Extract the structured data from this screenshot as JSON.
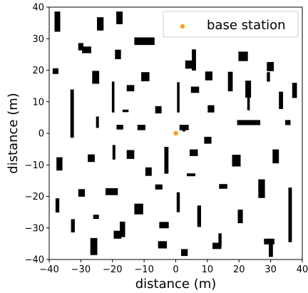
{
  "chart_data": {
    "type": "scatter",
    "xlabel": "distance (m)",
    "ylabel": "distance (m)",
    "xlim": [
      -40,
      40
    ],
    "ylim": [
      -40,
      40
    ],
    "xticks": [
      -40,
      -30,
      -20,
      -10,
      0,
      10,
      20,
      30,
      40
    ],
    "yticks": [
      -40,
      -30,
      -20,
      -10,
      0,
      10,
      20,
      30,
      40
    ],
    "grid": false,
    "legend_position": "top-right",
    "colors": {
      "obstacle": "#000000",
      "base_station": "#ff9f1c"
    },
    "series": [
      {
        "name": "base station",
        "points": [
          [
            0,
            0
          ]
        ]
      }
    ],
    "obstacles": [
      [
        -38.3,
        32.2,
        1.8,
        6.4
      ],
      [
        -30.8,
        26.3,
        1.6,
        2.3
      ],
      [
        -29.6,
        25.4,
        2.9,
        2.1
      ],
      [
        -24.9,
        32.6,
        2.1,
        4.2
      ],
      [
        -18.8,
        34.6,
        2.0,
        4.0
      ],
      [
        -13.1,
        28.0,
        6.4,
        2.4
      ],
      [
        -19.2,
        23.5,
        1.9,
        3.0
      ],
      [
        -38.9,
        18.8,
        1.8,
        1.8
      ],
      [
        -26.4,
        15.7,
        2.2,
        4.1
      ],
      [
        -10.9,
        16.5,
        2.6,
        2.9
      ],
      [
        -15.5,
        13.3,
        2.4,
        2.0
      ],
      [
        -20.2,
        6.6,
        0.8,
        9.8
      ],
      [
        -33.3,
        -1.4,
        1.1,
        15.3
      ],
      [
        -25.2,
        1.7,
        0.9,
        3.6
      ],
      [
        -16.8,
        6.7,
        1.9,
        0.8
      ],
      [
        -6.5,
        6.3,
        2.0,
        2.3
      ],
      [
        -18.7,
        1.2,
        2.1,
        1.5
      ],
      [
        -12.1,
        1.0,
        2.5,
        1.7
      ],
      [
        0.4,
        6.6,
        0.8,
        9.6
      ],
      [
        3.0,
        20.5,
        3.4,
        2.6
      ],
      [
        5.1,
        19.9,
        1.3,
        6.7
      ],
      [
        4.8,
        12.8,
        2.6,
        2.0
      ],
      [
        9.3,
        16.8,
        2.3,
        2.8
      ],
      [
        10.1,
        6.6,
        2.1,
        2.3
      ],
      [
        16.5,
        13.3,
        1.5,
        6.2
      ],
      [
        19.8,
        22.9,
        3.0,
        3.0
      ],
      [
        22.0,
        11.3,
        1.8,
        5.4
      ],
      [
        28.8,
        19.7,
        2.2,
        2.9
      ],
      [
        28.8,
        16.4,
        1.0,
        3.0
      ],
      [
        22.6,
        7.3,
        0.8,
        4.8
      ],
      [
        32.6,
        7.7,
        1.3,
        5.5
      ],
      [
        36.8,
        11.2,
        1.5,
        4.8
      ],
      [
        19.4,
        2.6,
        7.3,
        1.6
      ],
      [
        34.6,
        2.6,
        1.7,
        1.6
      ],
      [
        1.2,
        1.0,
        2.9,
        1.7
      ],
      [
        2.1,
        0.6,
        0.9,
        1.1
      ],
      [
        9.0,
        -3.3,
        2.3,
        2.2
      ],
      [
        4.4,
        -7.2,
        2.6,
        2.1
      ],
      [
        -37.7,
        -11.8,
        1.9,
        4.2
      ],
      [
        -27.8,
        -9.1,
        2.2,
        2.4
      ],
      [
        -20.0,
        -8.3,
        0.9,
        4.6
      ],
      [
        -15.5,
        -8.1,
        2.4,
        2.8
      ],
      [
        -3.6,
        -12.8,
        1.3,
        8.5
      ],
      [
        -9.6,
        -13.5,
        2.0,
        2.7
      ],
      [
        3.5,
        -13.6,
        2.7,
        0.9
      ],
      [
        17.8,
        -10.5,
        2.7,
        3.7
      ],
      [
        30.6,
        -9.5,
        2.0,
        4.4
      ],
      [
        -6.5,
        -17.8,
        2.3,
        1.6
      ],
      [
        -22.2,
        -19.6,
        3.9,
        2.2
      ],
      [
        -30.8,
        -20.1,
        2.1,
        2.4
      ],
      [
        -38.0,
        -25.1,
        1.2,
        4.5
      ],
      [
        0.3,
        -25.0,
        1.0,
        6.3
      ],
      [
        13.7,
        -17.6,
        2.6,
        1.5
      ],
      [
        26.1,
        -20.5,
        2.1,
        5.9
      ],
      [
        35.6,
        -34.5,
        1.1,
        17.3
      ],
      [
        -13.1,
        -25.7,
        2.8,
        3.4
      ],
      [
        -26.1,
        -27.1,
        1.8,
        1.3
      ],
      [
        -33.1,
        -31.4,
        1.2,
        4.2
      ],
      [
        -17.7,
        -32.9,
        1.7,
        4.9
      ],
      [
        -19.6,
        -33.4,
        2.4,
        2.5
      ],
      [
        -5.2,
        -30.1,
        3.0,
        2.0
      ],
      [
        6.8,
        -29.7,
        1.2,
        6.8
      ],
      [
        19.6,
        -28.5,
        1.6,
        4.3
      ],
      [
        27.9,
        -35.2,
        3.3,
        1.8
      ],
      [
        29.4,
        -39.2,
        1.3,
        5.0
      ],
      [
        -27.0,
        -38.6,
        2.2,
        5.4
      ],
      [
        -5.6,
        -36.5,
        2.8,
        2.3
      ],
      [
        1.7,
        -38.9,
        2.1,
        2.2
      ],
      [
        11.6,
        -36.7,
        2.8,
        2.0
      ],
      [
        13.5,
        -36.0,
        1.0,
        4.3
      ]
    ]
  }
}
